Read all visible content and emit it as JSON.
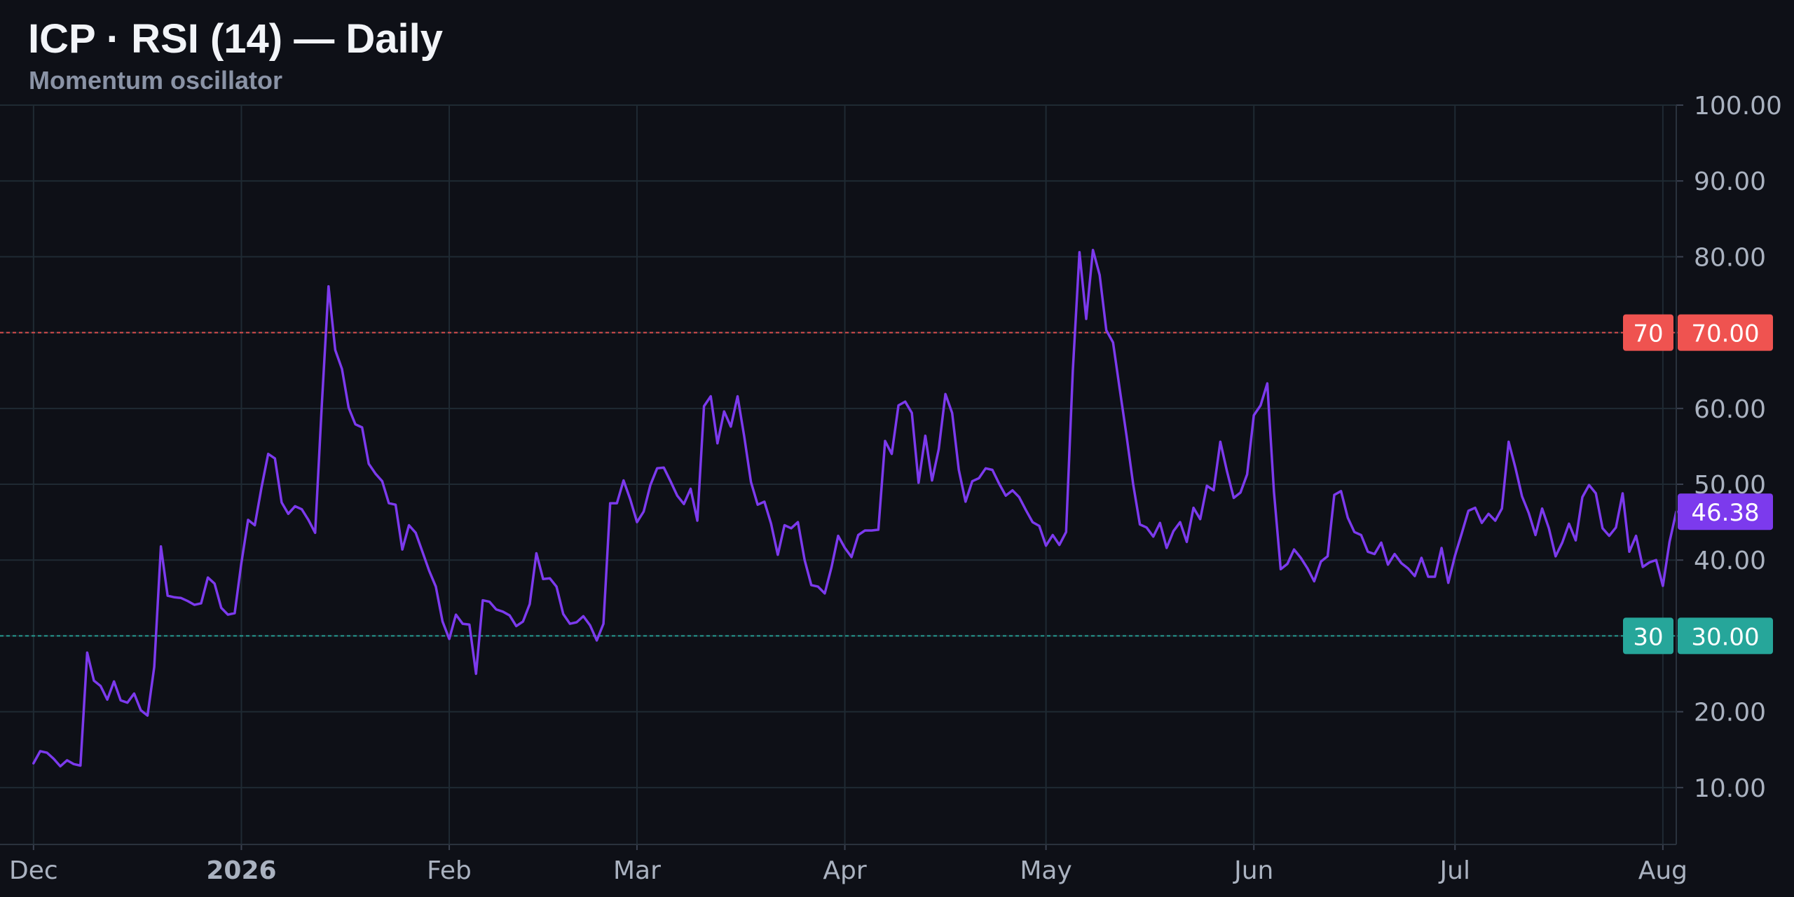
{
  "header": {
    "title": "ICP · RSI (14) — Daily",
    "subtitle": "Momentum oscillator"
  },
  "colors": {
    "background": "#0e1017",
    "grid": "#1f2a33",
    "line": "#7c3aed",
    "overbought": "#ef5350",
    "oversold": "#26a69a",
    "axis_text": "#aab2c0",
    "current_badge": "#7c3aed"
  },
  "chart_data": {
    "type": "line",
    "x_start": "2025-11-26",
    "x_end": "2026-08-03",
    "ylim": [
      2.5,
      100
    ],
    "y_ticks": [
      "10.00",
      "20.00",
      "30.00",
      "40.00",
      "50.00",
      "60.00",
      "70.00",
      "80.00",
      "90.00",
      "100.00"
    ],
    "x_ticks": [
      {
        "date": "2025-12-01",
        "label": "Dec"
      },
      {
        "date": "2026-01-01",
        "label": "2026"
      },
      {
        "date": "2026-02-01",
        "label": "Feb"
      },
      {
        "date": "2026-03-01",
        "label": "Mar"
      },
      {
        "date": "2026-04-01",
        "label": "Apr"
      },
      {
        "date": "2026-05-01",
        "label": "May"
      },
      {
        "date": "2026-06-01",
        "label": "Jun"
      },
      {
        "date": "2026-07-01",
        "label": "Jul"
      },
      {
        "date": "2026-08-01",
        "label": "Aug"
      }
    ],
    "grid": true,
    "levels": [
      {
        "value": 70,
        "label": "70",
        "axis_label": "70.00",
        "color": "#ef5350"
      },
      {
        "value": 30,
        "label": "30",
        "axis_label": "30.00",
        "color": "#26a69a"
      }
    ],
    "current": {
      "value": 46.38,
      "label": "46.38"
    },
    "series": [
      {
        "values": [
          13.2,
          14.8,
          14.6,
          13.8,
          12.8,
          13.6,
          13.1,
          12.9,
          27.8,
          24.1,
          23.4,
          21.6,
          24.0,
          21.5,
          21.2,
          22.4,
          20.2,
          19.5,
          25.9,
          41.8,
          35.3,
          35.1,
          35.0,
          34.6,
          34.1,
          34.3,
          37.7,
          36.9,
          33.7,
          32.8,
          33.0,
          39.6,
          45.3,
          44.6,
          49.6,
          54.0,
          53.4,
          47.6,
          46.1,
          47.1,
          46.7,
          45.3,
          43.6,
          60.6,
          76.1,
          67.7,
          65.2,
          60.1,
          57.9,
          57.5,
          52.7,
          51.4,
          50.4,
          47.5,
          47.3,
          41.4,
          44.6,
          43.6,
          41.1,
          38.6,
          36.5,
          31.9,
          29.6,
          32.8,
          31.6,
          31.5,
          25.0,
          34.7,
          34.5,
          33.5,
          33.2,
          32.7,
          31.3,
          31.9,
          34.2,
          40.9,
          37.5,
          37.6,
          36.5,
          32.9,
          31.6,
          31.8,
          32.6,
          31.4,
          29.4,
          31.6,
          47.5,
          47.5,
          50.5,
          48.0,
          45.0,
          46.4,
          49.9,
          52.1,
          52.2,
          50.4,
          48.5,
          47.4,
          49.4,
          45.2,
          60.3,
          61.6,
          55.4,
          59.6,
          57.6,
          61.6,
          56.3,
          50.3,
          47.3,
          47.7,
          44.8,
          40.7,
          44.6,
          44.2,
          45.0,
          40.0,
          36.7,
          36.5,
          35.6,
          39.0,
          43.2,
          41.6,
          40.4,
          43.3,
          43.9,
          43.9,
          44.0,
          55.7,
          54.0,
          60.4,
          60.9,
          59.4,
          50.2,
          56.4,
          50.5,
          54.6,
          61.9,
          59.4,
          51.9,
          47.7,
          50.4,
          50.8,
          52.1,
          51.9,
          50.1,
          48.5,
          49.2,
          48.3,
          46.6,
          45.0,
          44.5,
          41.9,
          43.3,
          42.0,
          43.7,
          65.0,
          80.6,
          71.8,
          80.9,
          77.6,
          70.3,
          68.7,
          62.5,
          56.5,
          50.0,
          44.7,
          44.3,
          43.1,
          44.9,
          41.6,
          43.8,
          45.0,
          42.4,
          46.9,
          45.4,
          49.8,
          49.2,
          55.6,
          51.7,
          48.2,
          48.9,
          51.3,
          59.1,
          60.4,
          63.3,
          49.0,
          38.8,
          39.5,
          41.4,
          40.3,
          38.9,
          37.2,
          39.8,
          40.5,
          48.6,
          49.1,
          45.6,
          43.7,
          43.3,
          41.1,
          40.8,
          42.3,
          39.4,
          40.8,
          39.6,
          38.9,
          37.9,
          40.3,
          37.8,
          37.8,
          41.6,
          37.0,
          40.6,
          43.5,
          46.5,
          46.9,
          44.9,
          46.1,
          45.2,
          46.8,
          55.6,
          52.2,
          48.4,
          46.2,
          43.3,
          46.8,
          44.2,
          40.5,
          42.3,
          44.8,
          42.6,
          48.3,
          49.9,
          48.8,
          44.2,
          43.2,
          44.3,
          48.8,
          41.1,
          43.2,
          39.1,
          39.7,
          40.0,
          36.6,
          42.4,
          46.4
        ]
      }
    ]
  }
}
